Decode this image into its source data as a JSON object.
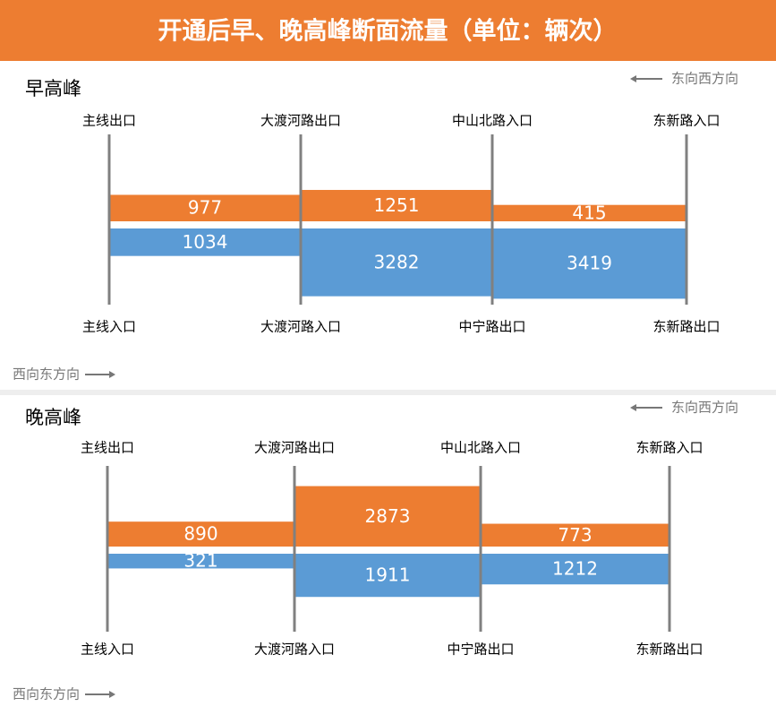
{
  "title": "开通后早、晚高峰断面流量（单位：辆次）",
  "chart_data": [
    {
      "type": "flow-bar",
      "title": "早高峰",
      "top_labels": [
        "主线出口",
        "大渡河路出口",
        "中山北路入口",
        "东新路入口"
      ],
      "bottom_labels": [
        "主线入口",
        "大渡河路入口",
        "中宁路出口",
        "东新路出口"
      ],
      "series": [
        {
          "name": "东向西方向",
          "color": "#ed7d31",
          "values": [
            977,
            1251,
            415
          ]
        },
        {
          "name": "西向东方向",
          "color": "#5b9bd5",
          "values": [
            1034,
            3282,
            3419
          ]
        }
      ]
    },
    {
      "type": "flow-bar",
      "title": "晚高峰",
      "top_labels": [
        "主线出口",
        "大渡河路出口",
        "中山北路入口",
        "东新路入口"
      ],
      "bottom_labels": [
        "主线入口",
        "大渡河路入口",
        "中宁路出口",
        "东新路出口"
      ],
      "series": [
        {
          "name": "东向西方向",
          "color": "#ed7d31",
          "values": [
            890,
            2873,
            773
          ]
        },
        {
          "name": "西向东方向",
          "color": "#5b9bd5",
          "values": [
            321,
            1911,
            1212
          ]
        }
      ]
    }
  ]
}
